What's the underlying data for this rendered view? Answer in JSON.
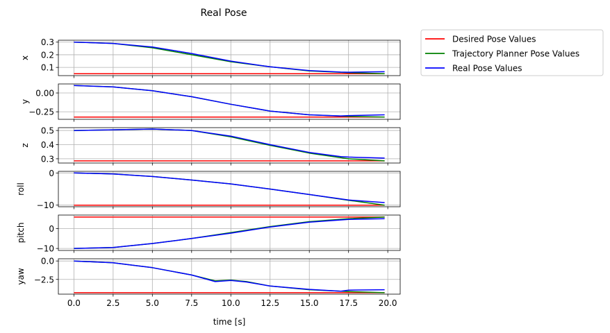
{
  "chart_data": {
    "type": "line",
    "title": "Real Pose",
    "xlabel": "time [s]",
    "xlim": [
      -0.99,
      20.79
    ],
    "x_ticks": [
      0,
      2.5,
      5,
      7.5,
      10,
      12.5,
      15,
      17.5,
      20
    ],
    "x_tick_labels": [
      "0.0",
      "2.5",
      "5.0",
      "7.5",
      "10.0",
      "12.5",
      "15.0",
      "17.5",
      "20.0"
    ],
    "grid": true,
    "legend_position": "outside right",
    "legend": [
      {
        "name": "Desired Pose Values",
        "color": "#ff0000"
      },
      {
        "name": "Trajectory Planner Pose Values",
        "color": "#008000"
      },
      {
        "name": "Real Pose Values",
        "color": "#0000ff"
      }
    ],
    "subplots": [
      {
        "ylabel": "x",
        "ylim": [
          0.035,
          0.315
        ],
        "y_ticks": [
          0.1,
          0.2,
          0.3
        ],
        "y_tick_labels": [
          "0.1",
          "0.2",
          "0.3"
        ],
        "series": {
          "desired": {
            "x": [
              0,
              19.8
            ],
            "y": [
              0.05,
              0.05
            ]
          },
          "planner": {
            "x": [
              0,
              2.5,
              5,
              7.5,
              10,
              12.5,
              15,
              17.5,
              19.8
            ],
            "y": [
              0.3,
              0.29,
              0.255,
              0.2,
              0.145,
              0.105,
              0.072,
              0.058,
              0.05
            ]
          },
          "real": {
            "x": [
              0,
              2.5,
              5,
              7.5,
              10,
              12.5,
              15,
              17,
              17.5,
              19.8
            ],
            "y": [
              0.3,
              0.29,
              0.262,
              0.21,
              0.15,
              0.105,
              0.075,
              0.063,
              0.062,
              0.066
            ]
          }
        }
      },
      {
        "ylabel": "y",
        "ylim": [
          -0.35,
          0.12
        ],
        "y_ticks": [
          -0.25,
          0.0
        ],
        "y_tick_labels": [
          "−0.25",
          "0.00"
        ],
        "series": {
          "desired": {
            "x": [
              0,
              19.8
            ],
            "y": [
              -0.32,
              -0.32
            ]
          },
          "planner": {
            "x": [
              0,
              2.5,
              5,
              7.5,
              10,
              12.5,
              15,
              17.5,
              19.8
            ],
            "y": [
              0.1,
              0.08,
              0.03,
              -0.05,
              -0.15,
              -0.24,
              -0.29,
              -0.31,
              -0.32
            ]
          },
          "real": {
            "x": [
              0,
              2.5,
              5,
              7.5,
              10,
              12.5,
              15,
              17,
              17.5,
              19.8
            ],
            "y": [
              0.1,
              0.08,
              0.03,
              -0.05,
              -0.15,
              -0.24,
              -0.29,
              -0.305,
              -0.3,
              -0.29
            ]
          }
        }
      },
      {
        "ylabel": "z",
        "ylim": [
          0.27,
          0.52
        ],
        "y_ticks": [
          0.3,
          0.4,
          0.5
        ],
        "y_tick_labels": [
          "0.3",
          "0.4",
          "0.5"
        ],
        "series": {
          "desired": {
            "x": [
              0,
              19.8
            ],
            "y": [
              0.285,
              0.285
            ]
          },
          "planner": {
            "x": [
              0,
              2.5,
              5,
              7.5,
              10,
              12.5,
              15,
              17.5,
              19.8
            ],
            "y": [
              0.5,
              0.505,
              0.51,
              0.5,
              0.455,
              0.395,
              0.34,
              0.3,
              0.285
            ]
          },
          "real": {
            "x": [
              0,
              2.5,
              5,
              7.5,
              10,
              12.5,
              15,
              17,
              17.5,
              19.8
            ],
            "y": [
              0.5,
              0.505,
              0.51,
              0.5,
              0.46,
              0.4,
              0.345,
              0.315,
              0.312,
              0.305
            ]
          }
        }
      },
      {
        "ylabel": "roll",
        "ylim": [
          -10.5,
          0.5
        ],
        "y_ticks": [
          -10,
          0
        ],
        "y_tick_labels": [
          "−10",
          "0"
        ],
        "series": {
          "desired": {
            "x": [
              0,
              19.8
            ],
            "y": [
              -10,
              -10
            ]
          },
          "planner": {
            "x": [
              0,
              2.5,
              5,
              7.5,
              10,
              12.5,
              15,
              17.5,
              19.8
            ],
            "y": [
              0,
              -0.3,
              -1.1,
              -2.2,
              -3.4,
              -5,
              -6.7,
              -8.5,
              -10
            ]
          },
          "real": {
            "x": [
              0,
              2.5,
              5,
              7.5,
              10,
              12.5,
              15,
              17.5,
              19.8
            ],
            "y": [
              0,
              -0.3,
              -1.1,
              -2.2,
              -3.4,
              -5,
              -6.7,
              -8.4,
              -9.2
            ]
          }
        }
      },
      {
        "ylabel": "pitch",
        "ylim": [
          -11,
          6.8
        ],
        "y_ticks": [
          -10,
          0
        ],
        "y_tick_labels": [
          "−10",
          "0"
        ],
        "series": {
          "desired": {
            "x": [
              0,
              19.8
            ],
            "y": [
              5.8,
              5.8
            ]
          },
          "planner": {
            "x": [
              0,
              2.5,
              5,
              7.5,
              10,
              12.5,
              15,
              17.5,
              19.8
            ],
            "y": [
              -10,
              -9.5,
              -7.5,
              -5,
              -2,
              1,
              3.5,
              5,
              5.8
            ]
          },
          "real": {
            "x": [
              0,
              2.5,
              5,
              7.5,
              10,
              12.5,
              15,
              17.5,
              19.8
            ],
            "y": [
              -10,
              -9.5,
              -7.5,
              -5,
              -2.3,
              0.8,
              3.2,
              4.6,
              5
            ]
          }
        }
      },
      {
        "ylabel": "yaw",
        "ylim": [
          -4.5,
          0.3
        ],
        "y_ticks": [
          -2.5,
          0.0
        ],
        "y_tick_labels": [
          "−2.5",
          "0.0"
        ],
        "series": {
          "desired": {
            "x": [
              0,
              19.8
            ],
            "y": [
              -4.3,
              -4.3
            ]
          },
          "planner": {
            "x": [
              0,
              2.5,
              5,
              7.5,
              9,
              10,
              11,
              12.5,
              15,
              17.5,
              19.8
            ],
            "y": [
              0,
              -0.25,
              -0.9,
              -1.9,
              -2.7,
              -2.6,
              -2.8,
              -3.4,
              -3.9,
              -4.15,
              -4.3
            ]
          },
          "real": {
            "x": [
              0,
              2.5,
              5,
              7.5,
              9,
              10,
              11,
              12.5,
              15,
              17,
              17.5,
              19.8
            ],
            "y": [
              0,
              -0.25,
              -0.9,
              -1.9,
              -2.8,
              -2.65,
              -2.85,
              -3.4,
              -3.85,
              -4.1,
              -3.95,
              -3.9
            ]
          }
        }
      }
    ]
  }
}
